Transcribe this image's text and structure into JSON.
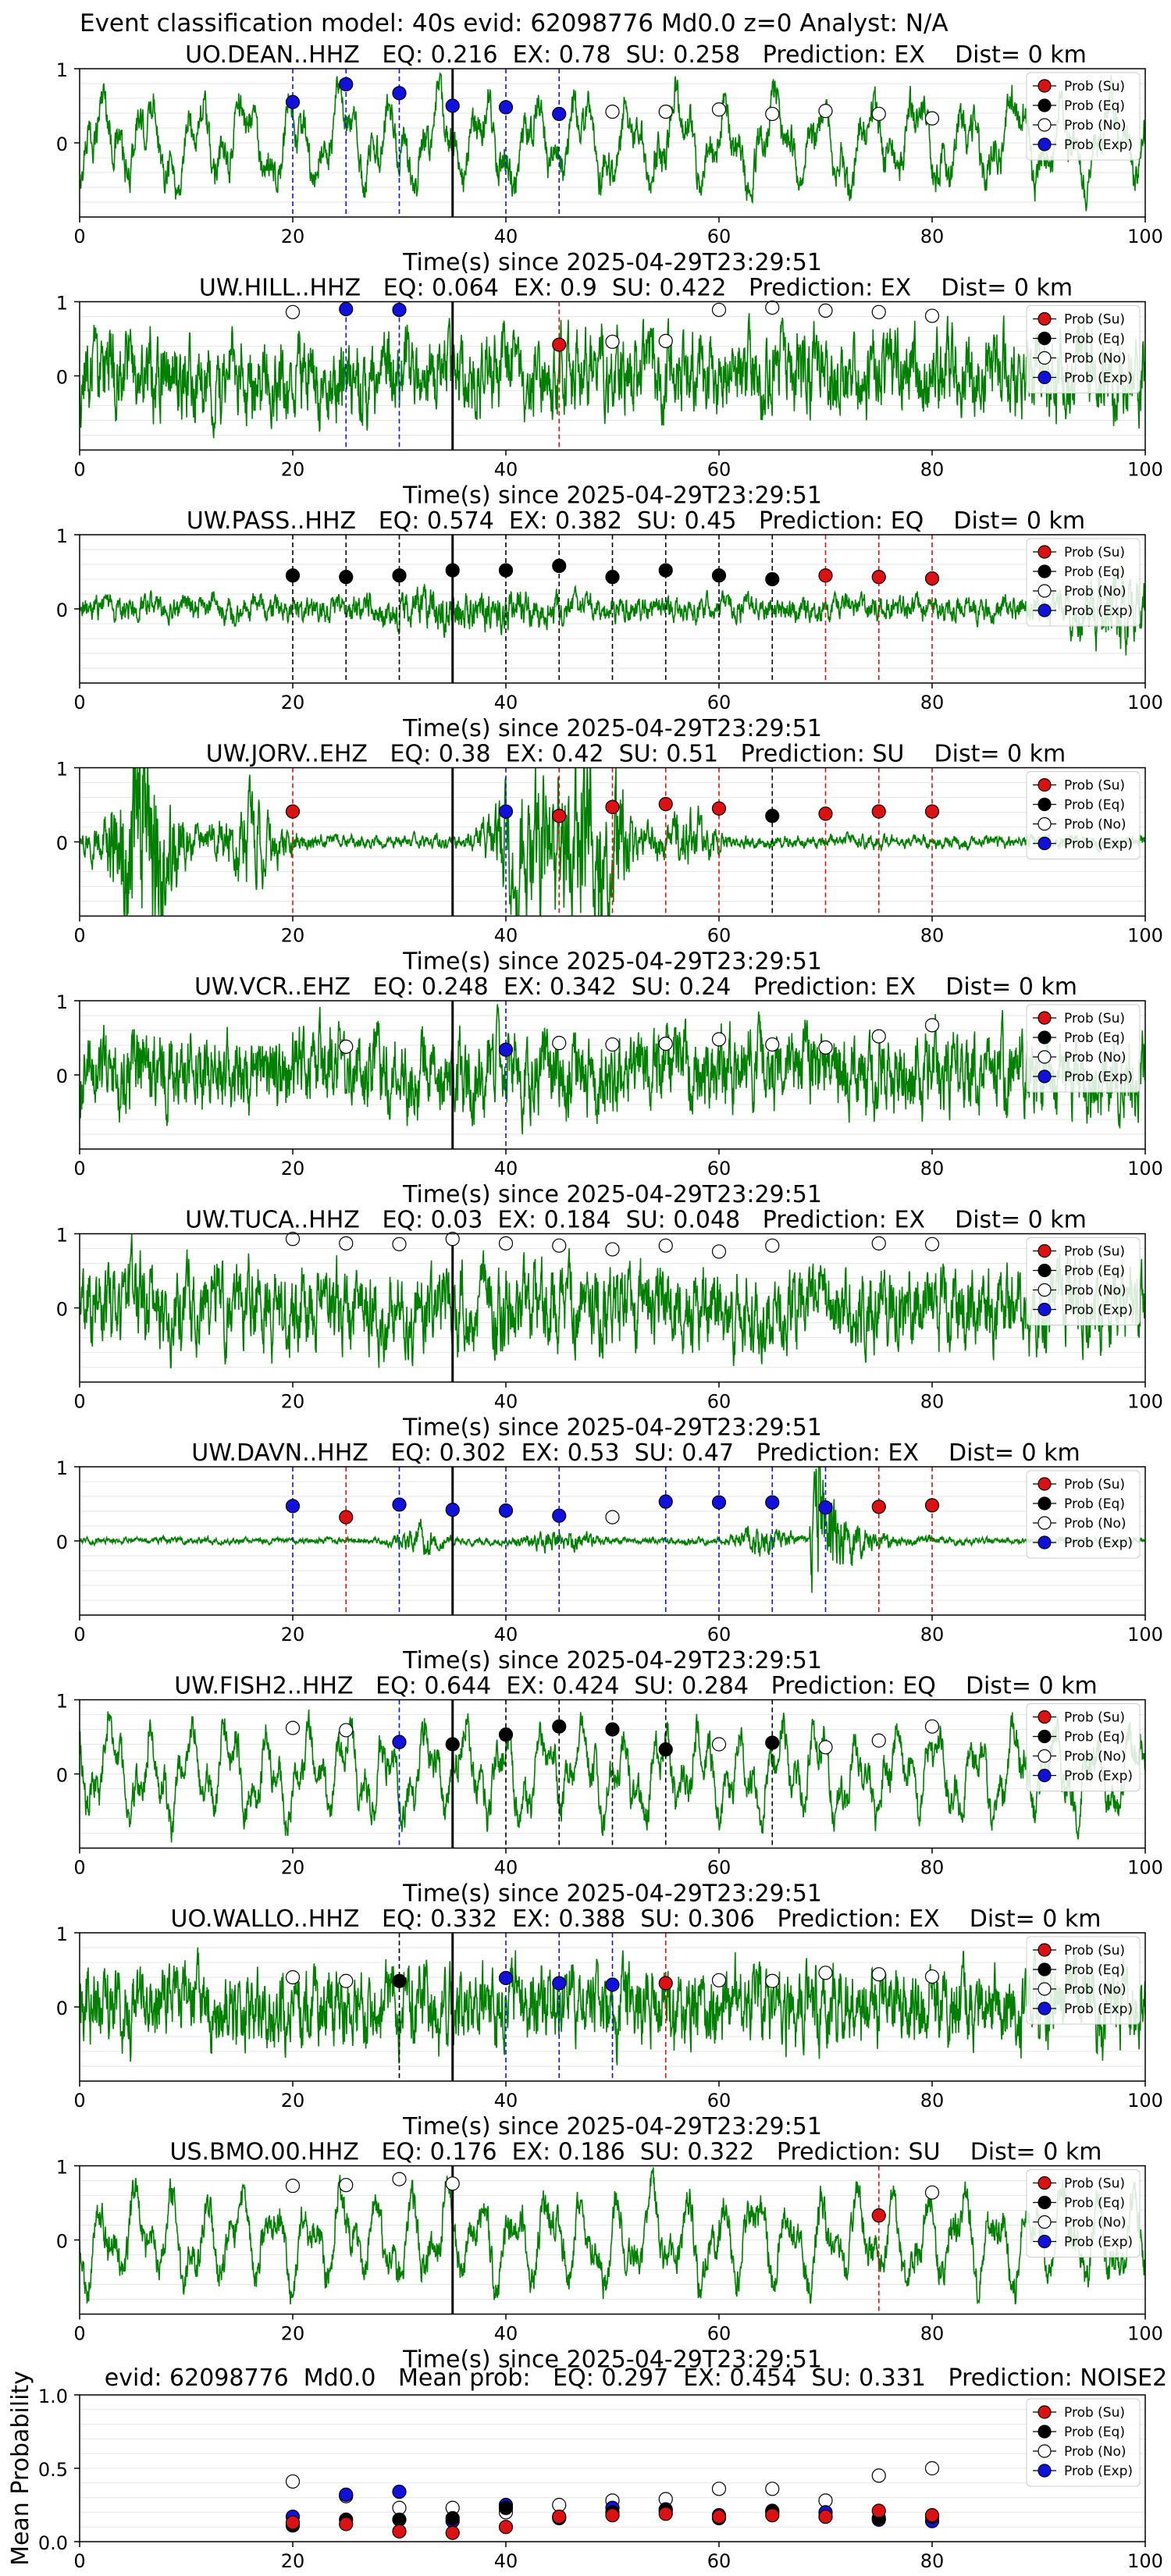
{
  "suptitle": "Event classification model: 40s evid: 62098776 Md0.0 z=0 Analyst: N/A",
  "legend_entries": [
    "Prob (Su)",
    "Prob (Eq)",
    "Prob (No)",
    "Prob (Exp)"
  ],
  "colors": {
    "waveform": "#008000",
    "su": "#dd1111",
    "eq": "#000000",
    "no": "#ffffff",
    "exp": "#1111dd",
    "grid": "#e6e6e6",
    "pick_line": "#000000"
  },
  "chart_data": [
    {
      "type": "line",
      "station": "UO.DEAN..HHZ",
      "title": "UO.DEAN..HHZ   EQ: 0.216  EX: 0.78  SU: 0.258   Prediction: EX    Dist= 0 km",
      "xlabel": "Time(s) since 2025-04-29T23:29:51",
      "xlim": [
        0,
        100
      ],
      "ylim": [
        -1,
        1
      ],
      "xticks": [
        "0",
        "20",
        "40",
        "60",
        "80",
        "100"
      ],
      "yticks": [
        "1",
        "0"
      ],
      "pick_time": 35,
      "waveform_style": "lowfreq",
      "legend": "top-right",
      "points": [
        {
          "t": 20,
          "p": 0.55,
          "cls": "exp"
        },
        {
          "t": 25,
          "p": 0.79,
          "cls": "exp"
        },
        {
          "t": 30,
          "p": 0.67,
          "cls": "exp"
        },
        {
          "t": 35,
          "p": 0.5,
          "cls": "exp"
        },
        {
          "t": 40,
          "p": 0.48,
          "cls": "exp"
        },
        {
          "t": 45,
          "p": 0.39,
          "cls": "exp"
        },
        {
          "t": 50,
          "p": 0.42,
          "cls": "no"
        },
        {
          "t": 55,
          "p": 0.42,
          "cls": "no"
        },
        {
          "t": 60,
          "p": 0.45,
          "cls": "no"
        },
        {
          "t": 65,
          "p": 0.39,
          "cls": "no"
        },
        {
          "t": 70,
          "p": 0.43,
          "cls": "no"
        },
        {
          "t": 75,
          "p": 0.39,
          "cls": "no"
        },
        {
          "t": 80,
          "p": 0.33,
          "cls": "no"
        }
      ]
    },
    {
      "type": "line",
      "station": "UW.HILL..HHZ",
      "title": "UW.HILL..HHZ   EQ: 0.064  EX: 0.9  SU: 0.422   Prediction: EX    Dist= 0 km",
      "xlabel": "Time(s) since 2025-04-29T23:29:51",
      "xlim": [
        0,
        100
      ],
      "ylim": [
        -1,
        1
      ],
      "xticks": [
        "0",
        "20",
        "40",
        "60",
        "80",
        "100"
      ],
      "yticks": [
        "1",
        "0"
      ],
      "pick_time": 35,
      "waveform_style": "noise",
      "legend": "top-right",
      "points": [
        {
          "t": 20,
          "p": 0.86,
          "cls": "no"
        },
        {
          "t": 25,
          "p": 0.9,
          "cls": "exp"
        },
        {
          "t": 30,
          "p": 0.89,
          "cls": "exp"
        },
        {
          "t": 45,
          "p": 0.42,
          "cls": "su"
        },
        {
          "t": 50,
          "p": 0.46,
          "cls": "no"
        },
        {
          "t": 55,
          "p": 0.47,
          "cls": "no"
        },
        {
          "t": 60,
          "p": 0.89,
          "cls": "no"
        },
        {
          "t": 65,
          "p": 0.92,
          "cls": "no"
        },
        {
          "t": 70,
          "p": 0.88,
          "cls": "no"
        },
        {
          "t": 75,
          "p": 0.86,
          "cls": "no"
        },
        {
          "t": 80,
          "p": 0.81,
          "cls": "no"
        }
      ]
    },
    {
      "type": "line",
      "station": "UW.PASS..HHZ",
      "title": "UW.PASS..HHZ   EQ: 0.574  EX: 0.382  SU: 0.45   Prediction: EQ    Dist= 0 km",
      "xlabel": "Time(s) since 2025-04-29T23:29:51",
      "xlim": [
        0,
        100
      ],
      "ylim": [
        -1,
        1
      ],
      "xticks": [
        "0",
        "20",
        "40",
        "60",
        "80",
        "100"
      ],
      "yticks": [
        "1",
        "0"
      ],
      "pick_time": 35,
      "waveform_style": "quiet",
      "legend": "top-right",
      "points": [
        {
          "t": 20,
          "p": 0.45,
          "cls": "eq"
        },
        {
          "t": 25,
          "p": 0.43,
          "cls": "eq"
        },
        {
          "t": 30,
          "p": 0.45,
          "cls": "eq"
        },
        {
          "t": 35,
          "p": 0.52,
          "cls": "eq"
        },
        {
          "t": 40,
          "p": 0.52,
          "cls": "eq"
        },
        {
          "t": 45,
          "p": 0.58,
          "cls": "eq"
        },
        {
          "t": 50,
          "p": 0.43,
          "cls": "eq"
        },
        {
          "t": 55,
          "p": 0.52,
          "cls": "eq"
        },
        {
          "t": 60,
          "p": 0.45,
          "cls": "eq"
        },
        {
          "t": 65,
          "p": 0.4,
          "cls": "eq"
        },
        {
          "t": 70,
          "p": 0.45,
          "cls": "su"
        },
        {
          "t": 75,
          "p": 0.43,
          "cls": "su"
        },
        {
          "t": 80,
          "p": 0.41,
          "cls": "su"
        }
      ]
    },
    {
      "type": "line",
      "station": "UW.JORV..EHZ",
      "title": "UW.JORV..EHZ   EQ: 0.38  EX: 0.42  SU: 0.51   Prediction: SU    Dist= 0 km",
      "xlabel": "Time(s) since 2025-04-29T23:29:51",
      "xlim": [
        0,
        100
      ],
      "ylim": [
        -1,
        1
      ],
      "xticks": [
        "0",
        "20",
        "40",
        "60",
        "80",
        "100"
      ],
      "yticks": [
        "1",
        "0"
      ],
      "pick_time": 35,
      "waveform_style": "bursts_jorv",
      "legend": "top-right",
      "points": [
        {
          "t": 20,
          "p": 0.41,
          "cls": "su"
        },
        {
          "t": 40,
          "p": 0.41,
          "cls": "exp"
        },
        {
          "t": 45,
          "p": 0.35,
          "cls": "su"
        },
        {
          "t": 50,
          "p": 0.47,
          "cls": "su"
        },
        {
          "t": 55,
          "p": 0.51,
          "cls": "su"
        },
        {
          "t": 60,
          "p": 0.45,
          "cls": "su"
        },
        {
          "t": 65,
          "p": 0.35,
          "cls": "eq"
        },
        {
          "t": 70,
          "p": 0.38,
          "cls": "su"
        },
        {
          "t": 75,
          "p": 0.41,
          "cls": "su"
        },
        {
          "t": 80,
          "p": 0.41,
          "cls": "su"
        }
      ]
    },
    {
      "type": "line",
      "station": "UW.VCR..EHZ",
      "title": "UW.VCR..EHZ   EQ: 0.248  EX: 0.342  SU: 0.24   Prediction: EX    Dist= 0 km",
      "xlabel": "Time(s) since 2025-04-29T23:29:51",
      "xlim": [
        0,
        100
      ],
      "ylim": [
        -1,
        1
      ],
      "xticks": [
        "0",
        "20",
        "40",
        "60",
        "80",
        "100"
      ],
      "yticks": [
        "1",
        "0"
      ],
      "pick_time": 35,
      "waveform_style": "noise",
      "legend": "top-right",
      "points": [
        {
          "t": 25,
          "p": 0.38,
          "cls": "no"
        },
        {
          "t": 40,
          "p": 0.34,
          "cls": "exp"
        },
        {
          "t": 45,
          "p": 0.43,
          "cls": "no"
        },
        {
          "t": 50,
          "p": 0.41,
          "cls": "no"
        },
        {
          "t": 55,
          "p": 0.42,
          "cls": "no"
        },
        {
          "t": 60,
          "p": 0.48,
          "cls": "no"
        },
        {
          "t": 65,
          "p": 0.41,
          "cls": "no"
        },
        {
          "t": 70,
          "p": 0.37,
          "cls": "no"
        },
        {
          "t": 75,
          "p": 0.52,
          "cls": "no"
        },
        {
          "t": 80,
          "p": 0.67,
          "cls": "no"
        }
      ]
    },
    {
      "type": "line",
      "station": "UW.TUCA..HHZ",
      "title": "UW.TUCA..HHZ   EQ: 0.03  EX: 0.184  SU: 0.048   Prediction: EX    Dist= 0 km",
      "xlabel": "Time(s) since 2025-04-29T23:29:51",
      "xlim": [
        0,
        100
      ],
      "ylim": [
        -1,
        1
      ],
      "xticks": [
        "0",
        "20",
        "40",
        "60",
        "80",
        "100"
      ],
      "yticks": [
        "1",
        "0"
      ],
      "pick_time": 35,
      "waveform_style": "noise",
      "legend": "top-right",
      "points": [
        {
          "t": 20,
          "p": 0.93,
          "cls": "no"
        },
        {
          "t": 25,
          "p": 0.87,
          "cls": "no"
        },
        {
          "t": 30,
          "p": 0.86,
          "cls": "no"
        },
        {
          "t": 35,
          "p": 0.93,
          "cls": "no"
        },
        {
          "t": 40,
          "p": 0.87,
          "cls": "no"
        },
        {
          "t": 45,
          "p": 0.84,
          "cls": "no"
        },
        {
          "t": 50,
          "p": 0.79,
          "cls": "no"
        },
        {
          "t": 55,
          "p": 0.84,
          "cls": "no"
        },
        {
          "t": 60,
          "p": 0.76,
          "cls": "no"
        },
        {
          "t": 65,
          "p": 0.84,
          "cls": "no"
        },
        {
          "t": 75,
          "p": 0.87,
          "cls": "no"
        },
        {
          "t": 80,
          "p": 0.86,
          "cls": "no"
        }
      ]
    },
    {
      "type": "line",
      "station": "UW.DAVN..HHZ",
      "title": "UW.DAVN..HHZ   EQ: 0.302  EX: 0.53  SU: 0.47   Prediction: EX    Dist= 0 km",
      "xlabel": "Time(s) since 2025-04-29T23:29:51",
      "xlim": [
        0,
        100
      ],
      "ylim": [
        -1,
        1
      ],
      "xticks": [
        "0",
        "20",
        "40",
        "60",
        "80",
        "100"
      ],
      "yticks": [
        "1",
        "0"
      ],
      "pick_time": 35,
      "waveform_style": "bursts_davn",
      "legend": "top-right",
      "points": [
        {
          "t": 20,
          "p": 0.47,
          "cls": "exp"
        },
        {
          "t": 25,
          "p": 0.32,
          "cls": "su"
        },
        {
          "t": 30,
          "p": 0.49,
          "cls": "exp"
        },
        {
          "t": 35,
          "p": 0.42,
          "cls": "exp"
        },
        {
          "t": 40,
          "p": 0.41,
          "cls": "exp"
        },
        {
          "t": 45,
          "p": 0.34,
          "cls": "exp"
        },
        {
          "t": 50,
          "p": 0.32,
          "cls": "no"
        },
        {
          "t": 55,
          "p": 0.53,
          "cls": "exp"
        },
        {
          "t": 60,
          "p": 0.52,
          "cls": "exp"
        },
        {
          "t": 65,
          "p": 0.52,
          "cls": "exp"
        },
        {
          "t": 70,
          "p": 0.45,
          "cls": "exp"
        },
        {
          "t": 75,
          "p": 0.46,
          "cls": "su"
        },
        {
          "t": 80,
          "p": 0.48,
          "cls": "su"
        }
      ]
    },
    {
      "type": "line",
      "station": "UW.FISH2..HHZ",
      "title": "UW.FISH2..HHZ   EQ: 0.644  EX: 0.424  SU: 0.284   Prediction: EQ    Dist= 0 km",
      "xlabel": "Time(s) since 2025-04-29T23:29:51",
      "xlim": [
        0,
        100
      ],
      "ylim": [
        -1,
        1
      ],
      "xticks": [
        "0",
        "20",
        "40",
        "60",
        "80",
        "100"
      ],
      "yticks": [
        "1",
        "0"
      ],
      "pick_time": 35,
      "waveform_style": "lowfreq",
      "legend": "top-right",
      "points": [
        {
          "t": 20,
          "p": 0.62,
          "cls": "no"
        },
        {
          "t": 25,
          "p": 0.59,
          "cls": "no"
        },
        {
          "t": 30,
          "p": 0.43,
          "cls": "exp"
        },
        {
          "t": 35,
          "p": 0.4,
          "cls": "eq"
        },
        {
          "t": 40,
          "p": 0.53,
          "cls": "eq"
        },
        {
          "t": 45,
          "p": 0.64,
          "cls": "eq"
        },
        {
          "t": 50,
          "p": 0.6,
          "cls": "eq"
        },
        {
          "t": 55,
          "p": 0.33,
          "cls": "eq"
        },
        {
          "t": 60,
          "p": 0.4,
          "cls": "no"
        },
        {
          "t": 65,
          "p": 0.42,
          "cls": "eq"
        },
        {
          "t": 70,
          "p": 0.36,
          "cls": "no"
        },
        {
          "t": 75,
          "p": 0.45,
          "cls": "no"
        },
        {
          "t": 80,
          "p": 0.64,
          "cls": "no"
        }
      ]
    },
    {
      "type": "line",
      "station": "UO.WALLO..HHZ",
      "title": "UO.WALLO..HHZ   EQ: 0.332  EX: 0.388  SU: 0.306   Prediction: EX    Dist= 0 km",
      "xlabel": "Time(s) since 2025-04-29T23:29:51",
      "xlim": [
        0,
        100
      ],
      "ylim": [
        -1,
        1
      ],
      "xticks": [
        "0",
        "20",
        "40",
        "60",
        "80",
        "100"
      ],
      "yticks": [
        "1",
        "0"
      ],
      "pick_time": 35,
      "waveform_style": "noise",
      "legend": "top-right",
      "points": [
        {
          "t": 20,
          "p": 0.4,
          "cls": "no"
        },
        {
          "t": 25,
          "p": 0.35,
          "cls": "no"
        },
        {
          "t": 30,
          "p": 0.35,
          "cls": "eq"
        },
        {
          "t": 40,
          "p": 0.39,
          "cls": "exp"
        },
        {
          "t": 45,
          "p": 0.32,
          "cls": "exp"
        },
        {
          "t": 50,
          "p": 0.3,
          "cls": "exp"
        },
        {
          "t": 55,
          "p": 0.32,
          "cls": "su"
        },
        {
          "t": 60,
          "p": 0.36,
          "cls": "no"
        },
        {
          "t": 65,
          "p": 0.35,
          "cls": "no"
        },
        {
          "t": 70,
          "p": 0.46,
          "cls": "no"
        },
        {
          "t": 75,
          "p": 0.44,
          "cls": "no"
        },
        {
          "t": 80,
          "p": 0.41,
          "cls": "no"
        }
      ]
    },
    {
      "type": "line",
      "station": "US.BMO.00.HHZ",
      "title": "US.BMO.00.HHZ   EQ: 0.176  EX: 0.186  SU: 0.322   Prediction: SU    Dist= 0 km",
      "xlabel": "Time(s) since 2025-04-29T23:29:51",
      "xlim": [
        0,
        100
      ],
      "ylim": [
        -1,
        1
      ],
      "xticks": [
        "0",
        "20",
        "40",
        "60",
        "80",
        "100"
      ],
      "yticks": [
        "1",
        "0"
      ],
      "pick_time": 35,
      "waveform_style": "lowfreq",
      "legend": "top-right",
      "points": [
        {
          "t": 20,
          "p": 0.73,
          "cls": "no"
        },
        {
          "t": 25,
          "p": 0.74,
          "cls": "no"
        },
        {
          "t": 30,
          "p": 0.82,
          "cls": "no"
        },
        {
          "t": 35,
          "p": 0.76,
          "cls": "no"
        },
        {
          "t": 75,
          "p": 0.33,
          "cls": "su"
        },
        {
          "t": 80,
          "p": 0.64,
          "cls": "no"
        }
      ]
    },
    {
      "type": "scatter",
      "title": "evid: 62098776  Md0.0   Mean prob:   EQ: 0.297  EX: 0.454  SU: 0.331   Prediction: NOISE2",
      "ylabel": "Mean Probability",
      "xlim": [
        0,
        100
      ],
      "ylim": [
        0,
        1
      ],
      "xticks": [
        "0",
        "20",
        "40",
        "60",
        "80",
        "100"
      ],
      "yticks": [
        "1.0",
        "0.5",
        "0.0"
      ],
      "legend": "top-right",
      "series": [
        {
          "name": "Prob (Su)",
          "cls": "su",
          "x": [
            20,
            25,
            30,
            35,
            40,
            45,
            50,
            55,
            60,
            65,
            70,
            75,
            80
          ],
          "y": [
            0.13,
            0.12,
            0.07,
            0.06,
            0.1,
            0.17,
            0.18,
            0.19,
            0.17,
            0.18,
            0.17,
            0.21,
            0.18
          ]
        },
        {
          "name": "Prob (Eq)",
          "cls": "eq",
          "x": [
            20,
            25,
            30,
            35,
            40,
            45,
            50,
            55,
            60,
            65,
            70,
            75,
            80
          ],
          "y": [
            0.11,
            0.15,
            0.15,
            0.16,
            0.23,
            0.16,
            0.2,
            0.21,
            0.16,
            0.21,
            0.17,
            0.16,
            0.17
          ]
        },
        {
          "name": "Prob (No)",
          "cls": "no",
          "x": [
            20,
            25,
            30,
            35,
            40,
            45,
            50,
            55,
            60,
            65,
            70,
            75,
            80
          ],
          "y": [
            0.41,
            0.31,
            0.23,
            0.23,
            0.2,
            0.25,
            0.28,
            0.29,
            0.36,
            0.36,
            0.28,
            0.45,
            0.5
          ]
        },
        {
          "name": "Prob (Exp)",
          "cls": "exp",
          "x": [
            20,
            25,
            30,
            35,
            40,
            45,
            50,
            55,
            60,
            65,
            70,
            75,
            80
          ],
          "y": [
            0.17,
            0.32,
            0.34,
            0.14,
            0.25,
            0.17,
            0.23,
            0.22,
            0.18,
            0.2,
            0.2,
            0.15,
            0.14
          ]
        }
      ]
    }
  ]
}
